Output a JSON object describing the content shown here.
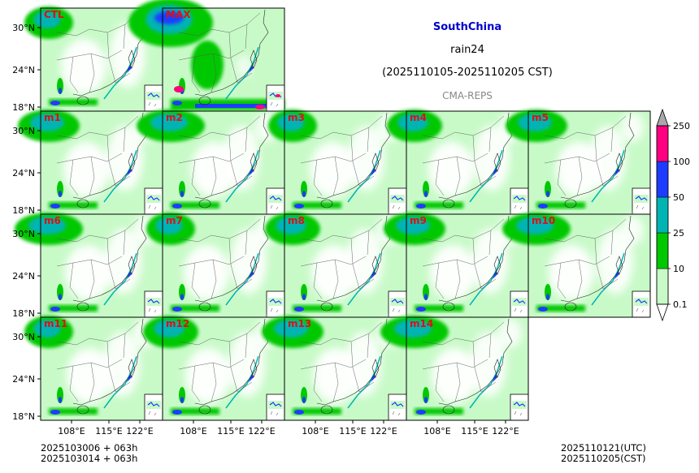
{
  "header": {
    "region": "SouthChina",
    "variable": "rain24",
    "period": "(2025110105-2025110205 CST)",
    "model": "CMA-REPS"
  },
  "footer": {
    "init_line_1": "2025103006  +  063h",
    "init_line_2": "2025103014  +  063h",
    "valid_utc": "2025110121(UTC)",
    "valid_cst": "2025110205(CST)"
  },
  "chart_data": {
    "type": "heatmap",
    "title": "rain24",
    "panel_labels": [
      "CTL",
      "MAX",
      "m1",
      "m2",
      "m3",
      "m4",
      "m5",
      "m6",
      "m7",
      "m8",
      "m9",
      "m10",
      "m11",
      "m12",
      "m13",
      "m14"
    ],
    "lat_ticks": [
      "30°N",
      "24°N",
      "18°N"
    ],
    "lon_ticks": [
      "108°E",
      "115°E",
      "122°E"
    ],
    "colorbar": {
      "levels": [
        0.1,
        10,
        25,
        50,
        100,
        250
      ],
      "tick_labels": [
        "0.1",
        "10",
        "25",
        "50",
        "100",
        "250"
      ],
      "colors": [
        "#c8fac8",
        "#00c800",
        "#00b4b4",
        "#1e3cff",
        "#ff0080",
        "#a9a9a9"
      ],
      "extend": "both"
    }
  }
}
